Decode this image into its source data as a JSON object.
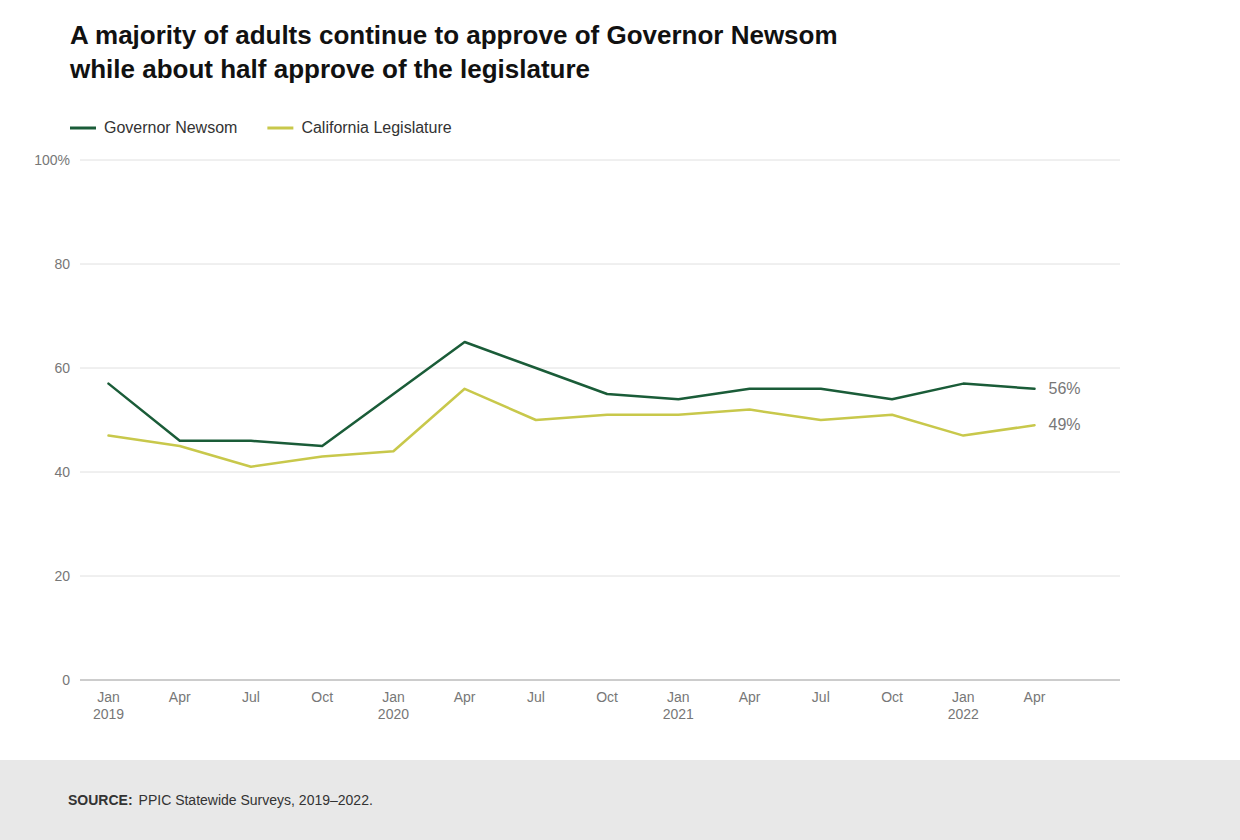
{
  "chart_data": {
    "type": "line",
    "title": "A majority of adults continue to approve of Governor Newsom\nwhile about half approve of the legislature",
    "categories": [
      "Jan\n2019",
      "Apr",
      "Jul",
      "Oct",
      "Jan\n2020",
      "Apr",
      "Jul",
      "Oct",
      "Jan\n2021",
      "Apr",
      "Jul",
      "Oct",
      "Jan\n2022",
      "Apr"
    ],
    "series": [
      {
        "name": "Governor Newsom",
        "color": "#1a5c38",
        "values": [
          57,
          46,
          46,
          45,
          55,
          65,
          60,
          55,
          54,
          56,
          56,
          54,
          57,
          56
        ]
      },
      {
        "name": "California Legislature",
        "color": "#c8c84b",
        "values": [
          47,
          45,
          41,
          43,
          44,
          56,
          50,
          51,
          51,
          52,
          50,
          51,
          47,
          49
        ]
      }
    ],
    "annotations": [
      {
        "label": "56%",
        "value": 56
      },
      {
        "label": "49%",
        "value": 49
      }
    ],
    "ylim": [
      0,
      100
    ],
    "yticks": [
      0,
      20,
      40,
      60,
      80,
      {
        "value": 100,
        "label": "100%"
      }
    ],
    "grid": true,
    "legend": "top",
    "source_label": "SOURCE:",
    "source": "PPIC Statewide Surveys, 2019–2022."
  }
}
